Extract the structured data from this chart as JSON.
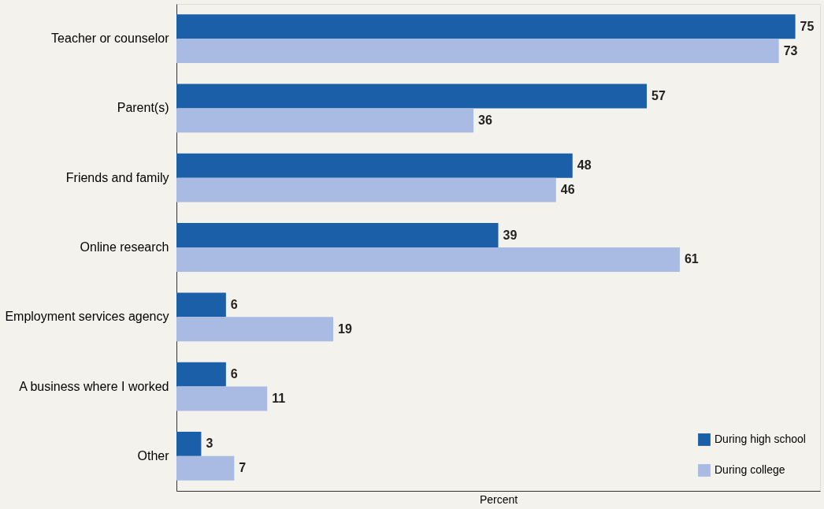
{
  "chart_data": {
    "type": "bar",
    "orientation": "horizontal",
    "xlabel": "Percent",
    "categories": [
      "Teacher or counselor",
      "Parent(s)",
      "Friends and family",
      "Online research",
      "Employment services agency",
      "A business where I worked",
      "Other"
    ],
    "series": [
      {
        "name": "During high school",
        "color": "#1a5fa8",
        "values": [
          75,
          57,
          48,
          39,
          6,
          6,
          3
        ]
      },
      {
        "name": "During college",
        "color": "#a9bbe2",
        "values": [
          73,
          36,
          46,
          61,
          19,
          11,
          7
        ]
      }
    ],
    "xlim": [
      0,
      78
    ],
    "tick_labels": "y",
    "data_labels": true,
    "legend": "bottom right",
    "grid": false
  }
}
